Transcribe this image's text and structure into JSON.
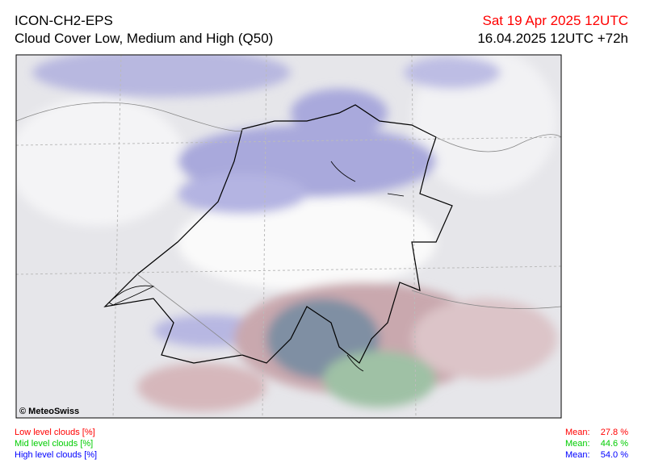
{
  "header": {
    "model": "ICON-CH2-EPS",
    "product": "Cloud Cover Low, Medium and High (Q50)",
    "valid_time": "Sat 19 Apr 2025 12UTC",
    "run": "16.04.2025 12UTC +72h"
  },
  "map": {
    "copyright": "© MeteoSwiss"
  },
  "legend": [
    {
      "label": "Low level clouds [%]",
      "mean_label": "Mean:",
      "mean": "27.8 %",
      "color": "#ff0000"
    },
    {
      "label": "Mid level clouds [%]",
      "mean_label": "Mean:",
      "mean": "44.6 %",
      "color": "#00cc00"
    },
    {
      "label": "High level clouds [%]",
      "mean_label": "Mean:",
      "mean": "54.0 %",
      "color": "#0000ff"
    }
  ]
}
